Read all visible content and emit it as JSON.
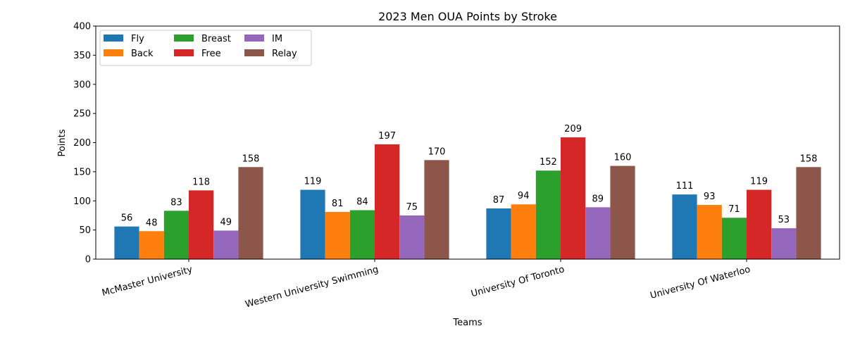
{
  "chart_data": {
    "type": "bar",
    "title": "2023 Men OUA Points by Stroke",
    "xlabel": "Teams",
    "ylabel": "Points",
    "ylim": [
      0,
      400
    ],
    "yticks": [
      0,
      50,
      100,
      150,
      200,
      250,
      300,
      350,
      400
    ],
    "grid": false,
    "legend_position": "top-left",
    "legend_columns": 3,
    "categories": [
      "McMaster University",
      "Western University Swimming",
      "University Of Toronto",
      "University Of Waterloo"
    ],
    "series": [
      {
        "name": "Fly",
        "color": "#1f77b4",
        "values": [
          56,
          119,
          87,
          111
        ]
      },
      {
        "name": "Back",
        "color": "#ff7f0e",
        "values": [
          48,
          81,
          94,
          93
        ]
      },
      {
        "name": "Breast",
        "color": "#2ca02c",
        "values": [
          83,
          84,
          152,
          71
        ]
      },
      {
        "name": "Free",
        "color": "#d62728",
        "values": [
          118,
          197,
          209,
          119
        ]
      },
      {
        "name": "IM",
        "color": "#9467bd",
        "values": [
          49,
          75,
          89,
          53
        ]
      },
      {
        "name": "Relay",
        "color": "#8c564b",
        "values": [
          158,
          170,
          160,
          158
        ]
      }
    ]
  }
}
